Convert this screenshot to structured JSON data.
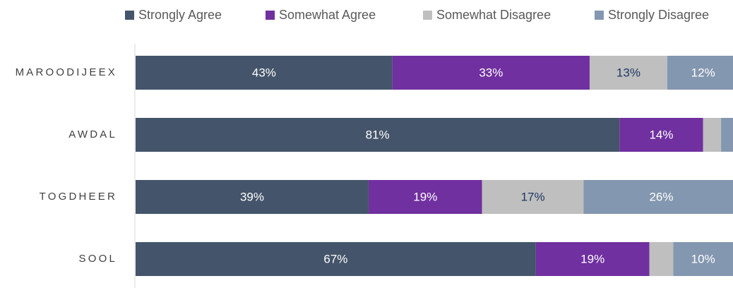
{
  "chart_data": {
    "type": "stacked-bar-horizontal",
    "categories": [
      "MAROODIJEEX",
      "AWDAL",
      "TOGDHEER",
      "SOOL"
    ],
    "series": [
      {
        "name": "Strongly Agree",
        "color": "#44546a",
        "label_color": "#ffffff",
        "values": [
          43,
          81,
          39,
          67
        ],
        "value_labels": [
          "43%",
          "81%",
          "39%",
          "67%"
        ]
      },
      {
        "name": "Somewhat Agree",
        "color": "#7030a0",
        "label_color": "#ffffff",
        "values": [
          33,
          14,
          19,
          19
        ],
        "value_labels": [
          "33%",
          "14%",
          "19%",
          "19%"
        ]
      },
      {
        "name": "Somewhat Disagree",
        "color": "#bfbfbf",
        "label_color": "#1f3864",
        "values": [
          13,
          3,
          17,
          4
        ],
        "value_labels": [
          "13%",
          null,
          "17%",
          null
        ]
      },
      {
        "name": "Strongly Disagree",
        "color": "#8497b0",
        "label_color": "#ffffff",
        "values": [
          12,
          2,
          26,
          10
        ],
        "value_labels": [
          "12%",
          null,
          "26%",
          "10%"
        ]
      }
    ],
    "xlim": [
      0,
      100
    ],
    "legend": "top"
  }
}
